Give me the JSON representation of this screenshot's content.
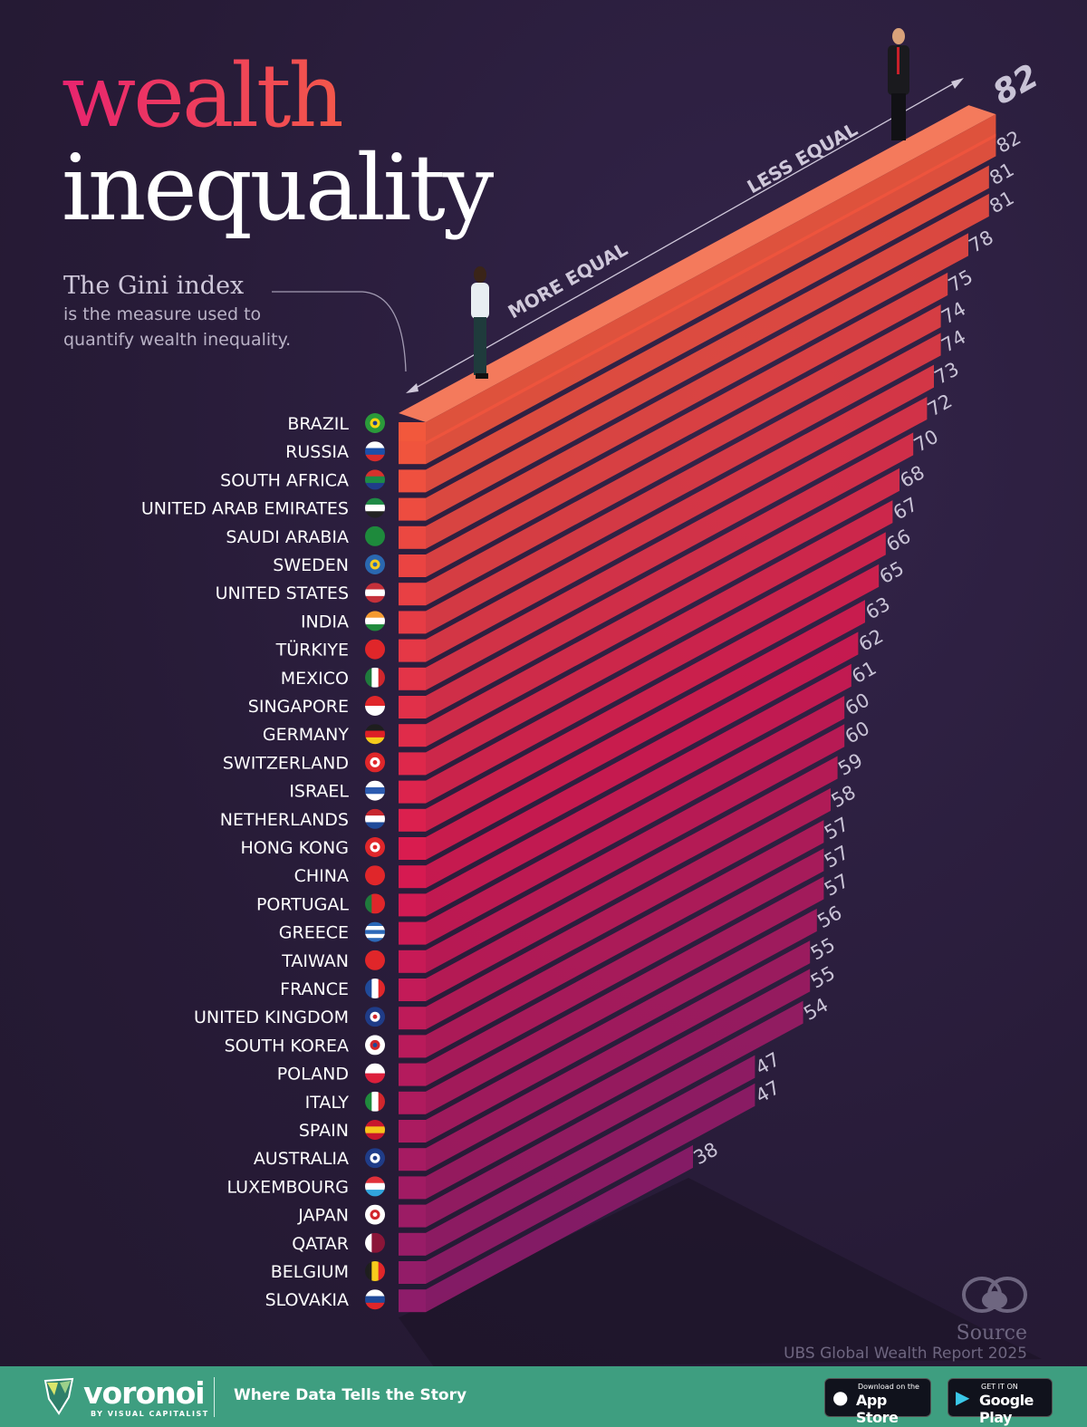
{
  "title": {
    "line1": "wealth",
    "line2": "inequality"
  },
  "gini": {
    "heading": "The Gini index",
    "body": "is the measure used to quantify wealth inequality."
  },
  "axis": {
    "more_equal": "MORE EQUAL",
    "less_equal": "LESS EQUAL"
  },
  "source": {
    "label": "Source",
    "text": "UBS Global Wealth Report 2025"
  },
  "footer": {
    "brand": "voronoi",
    "brand_sub": "BY VISUAL CAPITALIST",
    "tagline": "Where Data Tells the Story",
    "app_store_small": "Download on the",
    "app_store": "App Store",
    "google_small": "GET IT ON",
    "google": "Google Play"
  },
  "colors": {
    "background": "#2a1d3b",
    "bar_top": "#f2583c",
    "bar_mid": "#d81a50",
    "bar_bottom": "#8e1c6a",
    "label": "#c9c3d6",
    "footer": "#3e9e80"
  },
  "chart_data": {
    "type": "bar",
    "orientation": "horizontal-3d",
    "title": "wealth inequality",
    "categories": [
      "BRAZIL",
      "RUSSIA",
      "SOUTH AFRICA",
      "UNITED ARAB EMIRATES",
      "SAUDI ARABIA",
      "SWEDEN",
      "UNITED STATES",
      "INDIA",
      "TÜRKIYE",
      "MEXICO",
      "SINGAPORE",
      "GERMANY",
      "SWITZERLAND",
      "ISRAEL",
      "NETHERLANDS",
      "HONG KONG",
      "CHINA",
      "PORTUGAL",
      "GREECE",
      "TAIWAN",
      "FRANCE",
      "UNITED KINGDOM",
      "SOUTH KOREA",
      "POLAND",
      "ITALY",
      "SPAIN",
      "AUSTRALIA",
      "LUXEMBOURG",
      "JAPAN",
      "QATAR",
      "BELGIUM",
      "SLOVAKIA"
    ],
    "values": [
      82,
      82,
      81,
      81,
      78,
      75,
      74,
      74,
      73,
      72,
      70,
      68,
      67,
      66,
      65,
      63,
      62,
      61,
      60,
      60,
      59,
      58,
      57,
      57,
      57,
      56,
      55,
      55,
      54,
      47,
      47,
      38
    ],
    "value_labels": [
      "82",
      "82",
      "81",
      "81",
      "78",
      "75",
      "74",
      "74",
      "73",
      "72",
      "70",
      "68",
      "67",
      "66",
      "65",
      "63",
      "62",
      "61",
      "60",
      "60",
      "59",
      "58",
      "57",
      "57",
      "57",
      "56",
      "55",
      "55",
      "54",
      "47",
      "47",
      "38"
    ],
    "flags": [
      {
        "icon": "flag-brazil-icon",
        "dir": "c",
        "colors": [
          "#2a9a3a",
          "#f5d311",
          "#1b3d8f"
        ]
      },
      {
        "icon": "flag-russia-icon",
        "dir": "h",
        "colors": [
          "#ffffff",
          "#1c4fa8",
          "#d62b2b"
        ]
      },
      {
        "icon": "flag-south-africa-icon",
        "dir": "h",
        "colors": [
          "#d8312c",
          "#1e8a46",
          "#203c8a"
        ]
      },
      {
        "icon": "flag-uae-icon",
        "dir": "h",
        "colors": [
          "#1f8a45",
          "#ffffff",
          "#222222"
        ]
      },
      {
        "icon": "flag-saudi-arabia-icon",
        "dir": "h",
        "colors": [
          "#1e8a3c",
          "#1e8a3c",
          "#1e8a3c"
        ]
      },
      {
        "icon": "flag-sweden-icon",
        "dir": "c",
        "colors": [
          "#2a68b0",
          "#f6cb1c",
          "#2a68b0"
        ]
      },
      {
        "icon": "flag-united-states-icon",
        "dir": "h",
        "colors": [
          "#c5303a",
          "#ffffff",
          "#c5303a"
        ]
      },
      {
        "icon": "flag-india-icon",
        "dir": "h",
        "colors": [
          "#f49a30",
          "#ffffff",
          "#1f8a3c"
        ]
      },
      {
        "icon": "flag-turkiye-icon",
        "dir": "h",
        "colors": [
          "#e0262a",
          "#e0262a",
          "#e0262a"
        ]
      },
      {
        "icon": "flag-mexico-icon",
        "dir": "v",
        "colors": [
          "#1f7a3c",
          "#ffffff",
          "#d1262c"
        ]
      },
      {
        "icon": "flag-singapore-icon",
        "dir": "h",
        "colors": [
          "#e0262a",
          "#ffffff"
        ]
      },
      {
        "icon": "flag-germany-icon",
        "dir": "h",
        "colors": [
          "#1e1e1e",
          "#dd1f26",
          "#f6cb1c"
        ]
      },
      {
        "icon": "flag-switzerland-icon",
        "dir": "c",
        "colors": [
          "#e0262a",
          "#ffffff",
          "#e0262a"
        ]
      },
      {
        "icon": "flag-israel-icon",
        "dir": "h",
        "colors": [
          "#ffffff",
          "#2c5bb0",
          "#ffffff"
        ]
      },
      {
        "icon": "flag-netherlands-icon",
        "dir": "h",
        "colors": [
          "#c7262e",
          "#ffffff",
          "#1f4a99"
        ]
      },
      {
        "icon": "flag-hong-kong-icon",
        "dir": "c",
        "colors": [
          "#e0262a",
          "#ffffff",
          "#e0262a"
        ]
      },
      {
        "icon": "flag-china-icon",
        "dir": "h",
        "colors": [
          "#e0262a",
          "#e0262a"
        ]
      },
      {
        "icon": "flag-portugal-icon",
        "dir": "v",
        "colors": [
          "#1f7a3c",
          "#e0262a",
          "#e0262a"
        ]
      },
      {
        "icon": "flag-greece-icon",
        "dir": "h",
        "colors": [
          "#2c68b8",
          "#ffffff",
          "#2c68b8",
          "#ffffff",
          "#2c68b8"
        ]
      },
      {
        "icon": "flag-taiwan-icon",
        "dir": "h",
        "colors": [
          "#e0262a",
          "#e0262a"
        ]
      },
      {
        "icon": "flag-france-icon",
        "dir": "v",
        "colors": [
          "#1f4a99",
          "#ffffff",
          "#e0262a"
        ]
      },
      {
        "icon": "flag-united-kingdom-icon",
        "dir": "c",
        "colors": [
          "#1f3c88",
          "#ffffff",
          "#d1262c"
        ]
      },
      {
        "icon": "flag-south-korea-icon",
        "dir": "c",
        "colors": [
          "#ffffff",
          "#d1262c",
          "#1f4a99"
        ]
      },
      {
        "icon": "flag-poland-icon",
        "dir": "h",
        "colors": [
          "#ffffff",
          "#dc1f3c"
        ]
      },
      {
        "icon": "flag-italy-icon",
        "dir": "v",
        "colors": [
          "#1f8a3c",
          "#ffffff",
          "#d1262c"
        ]
      },
      {
        "icon": "flag-spain-icon",
        "dir": "h",
        "colors": [
          "#c8162c",
          "#f6c21c",
          "#c8162c"
        ]
      },
      {
        "icon": "flag-australia-icon",
        "dir": "c",
        "colors": [
          "#1f3c88",
          "#ffffff",
          "#1f3c88"
        ]
      },
      {
        "icon": "flag-luxembourg-icon",
        "dir": "h",
        "colors": [
          "#e0303a",
          "#ffffff",
          "#31a4dc"
        ]
      },
      {
        "icon": "flag-japan-icon",
        "dir": "c",
        "colors": [
          "#ffffff",
          "#d1262c",
          "#ffffff"
        ]
      },
      {
        "icon": "flag-qatar-icon",
        "dir": "v",
        "colors": [
          "#ffffff",
          "#8a1538",
          "#8a1538"
        ]
      },
      {
        "icon": "flag-belgium-icon",
        "dir": "v",
        "colors": [
          "#1e1e1e",
          "#f6cb1c",
          "#e0262a"
        ]
      },
      {
        "icon": "flag-slovakia-icon",
        "dir": "h",
        "colors": [
          "#ffffff",
          "#1f4a99",
          "#e0262a"
        ]
      }
    ]
  }
}
